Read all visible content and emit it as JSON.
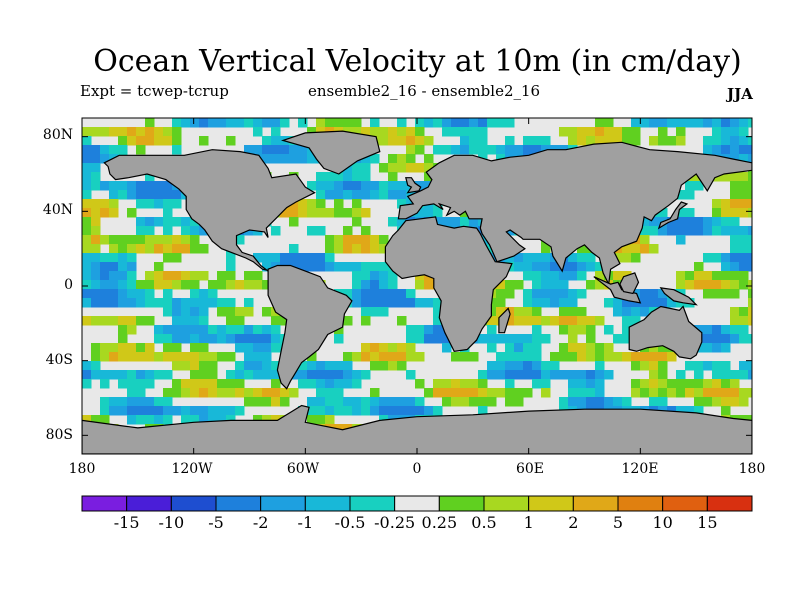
{
  "title": "Ocean Vertical Velocity at 10m (in cm/day)",
  "subtitle_left": "Expt = tcwep-tcrup",
  "subtitle_center": "ensemble2_16 - ensemble2_16",
  "season": "JJA",
  "lat_labels": [
    "80N",
    "40N",
    "0",
    "40S",
    "80S"
  ],
  "lon_labels": [
    "180",
    "120W",
    "60W",
    "0",
    "60E",
    "120E",
    "180"
  ],
  "colorbar": {
    "colors": [
      "#7a1ee0",
      "#4a1ed8",
      "#1e4ed0",
      "#1e80dc",
      "#1ea0e0",
      "#18b8d8",
      "#18d0c0",
      "#e8e8e8",
      "#60d020",
      "#a8d820",
      "#d0c818",
      "#e0a818",
      "#e08010",
      "#e06010",
      "#d83010"
    ],
    "labels": [
      "-15",
      "-10",
      "-5",
      "-2",
      "-1",
      "-0.5",
      "-0.25",
      "0.25",
      "0.5",
      "1",
      "2",
      "5",
      "10",
      "15"
    ]
  },
  "colors": {
    "land": "#a0a0a0",
    "ocean_background": "#e8e8e8"
  }
}
